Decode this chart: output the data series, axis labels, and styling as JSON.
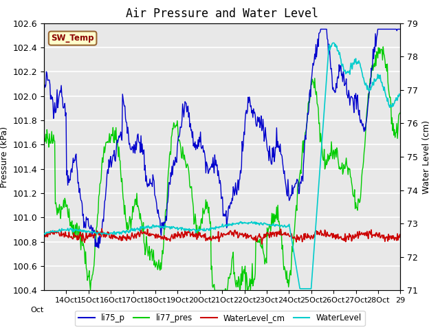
{
  "title": "Air Pressure and Water Level",
  "ylabel_left": "Pressure (kPa)",
  "ylabel_right": "Water Level (cm)",
  "ylim_left": [
    100.4,
    102.6
  ],
  "ylim_right": [
    71.0,
    79.0
  ],
  "yticks_left": [
    100.4,
    100.6,
    100.8,
    101.0,
    101.2,
    101.4,
    101.6,
    101.8,
    102.0,
    102.2,
    102.4,
    102.6
  ],
  "yticks_right": [
    71.0,
    72.0,
    73.0,
    74.0,
    75.0,
    76.0,
    77.0,
    78.0,
    79.0
  ],
  "annotation_text": "SW_Temp",
  "annotation_color": "#8B0000",
  "annotation_bg": "#FFFFCC",
  "annotation_border": "#996633",
  "colors": {
    "li75_p": "#0000CC",
    "li77_pres": "#00CC00",
    "WaterLevel_cm": "#CC0000",
    "WaterLevel": "#00CCCC"
  },
  "background_color": "#E8E8E8",
  "grid_color": "#FFFFFF",
  "title_fontsize": 12,
  "axis_fontsize": 9
}
